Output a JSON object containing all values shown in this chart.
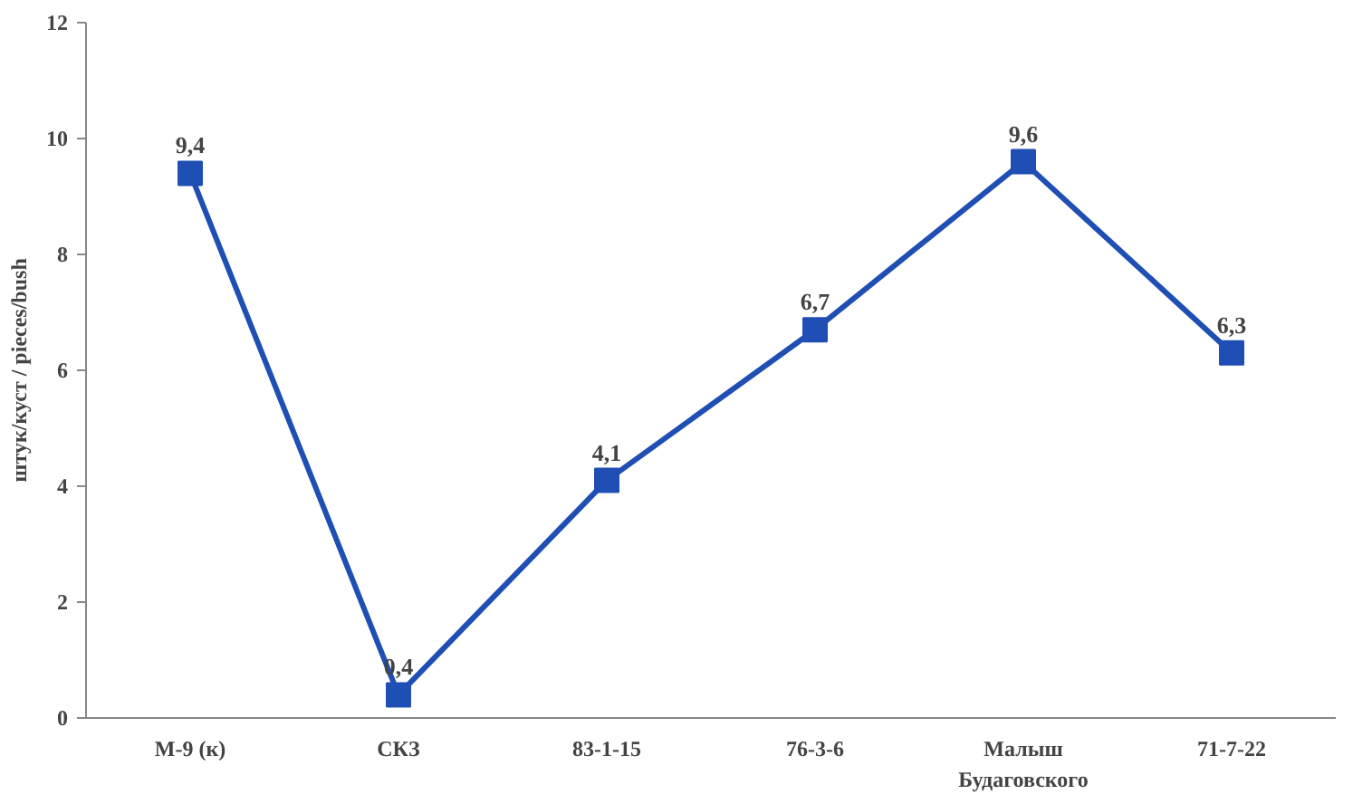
{
  "chart_data": {
    "type": "line",
    "ylabel": "штук/куст / pieces/bush",
    "categories": [
      "М-9 (к)",
      "СКЗ",
      "83-1-15",
      "76-3-6",
      "Малыш Будаговского",
      "71-7-22"
    ],
    "series": [
      {
        "color": "#1f4eb4",
        "values": [
          9.4,
          0.4,
          4.1,
          6.7,
          9.6,
          6.3
        ],
        "value_labels": [
          "9,4",
          "0,4",
          "4,1",
          "6,7",
          "9,6",
          "6,3"
        ]
      }
    ],
    "ylim": [
      0,
      12
    ],
    "yticks": [
      0,
      2,
      4,
      6,
      8,
      10,
      12
    ],
    "grid": false,
    "marker": "square",
    "line_style": "solid"
  }
}
